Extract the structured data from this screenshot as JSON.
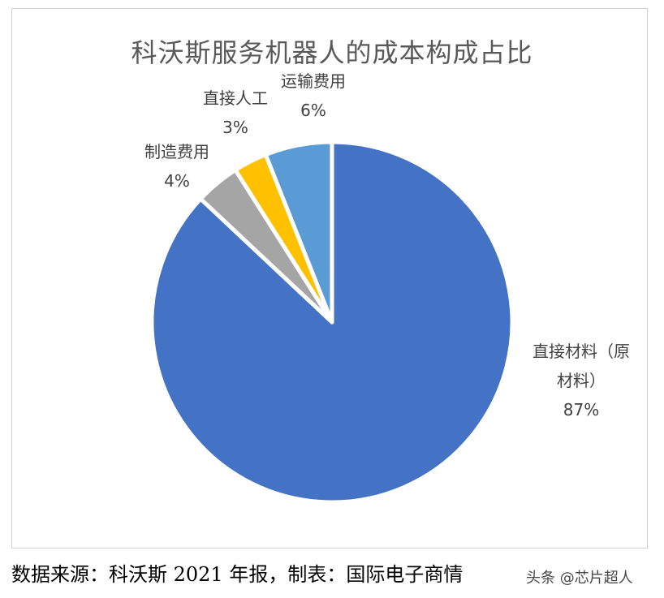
{
  "chart_data": {
    "type": "pie",
    "title": "科沃斯服务机器人的成本构成占比",
    "slices": [
      {
        "label": "直接材料（原材料）",
        "label_lines": [
          "直接材料（原",
          "材料）"
        ],
        "value": 87,
        "value_text": "87%",
        "color": "#4472c4"
      },
      {
        "label": "制造费用",
        "label_lines": [
          "制造费用"
        ],
        "value": 4,
        "value_text": "4%",
        "color": "#a5a5a5"
      },
      {
        "label": "直接人工",
        "label_lines": [
          "直接人工"
        ],
        "value": 3,
        "value_text": "3%",
        "color": "#ffc000"
      },
      {
        "label": "运输费用",
        "label_lines": [
          "运输费用"
        ],
        "value": 6,
        "value_text": "6%",
        "color": "#5b9bd5"
      }
    ],
    "direction": "clockwise",
    "start": "12 o'clock"
  },
  "footer": {
    "source": "数据来源：科沃斯 2021 年报，制表：国际电子商情",
    "watermark": "头条 @芯片超人"
  }
}
